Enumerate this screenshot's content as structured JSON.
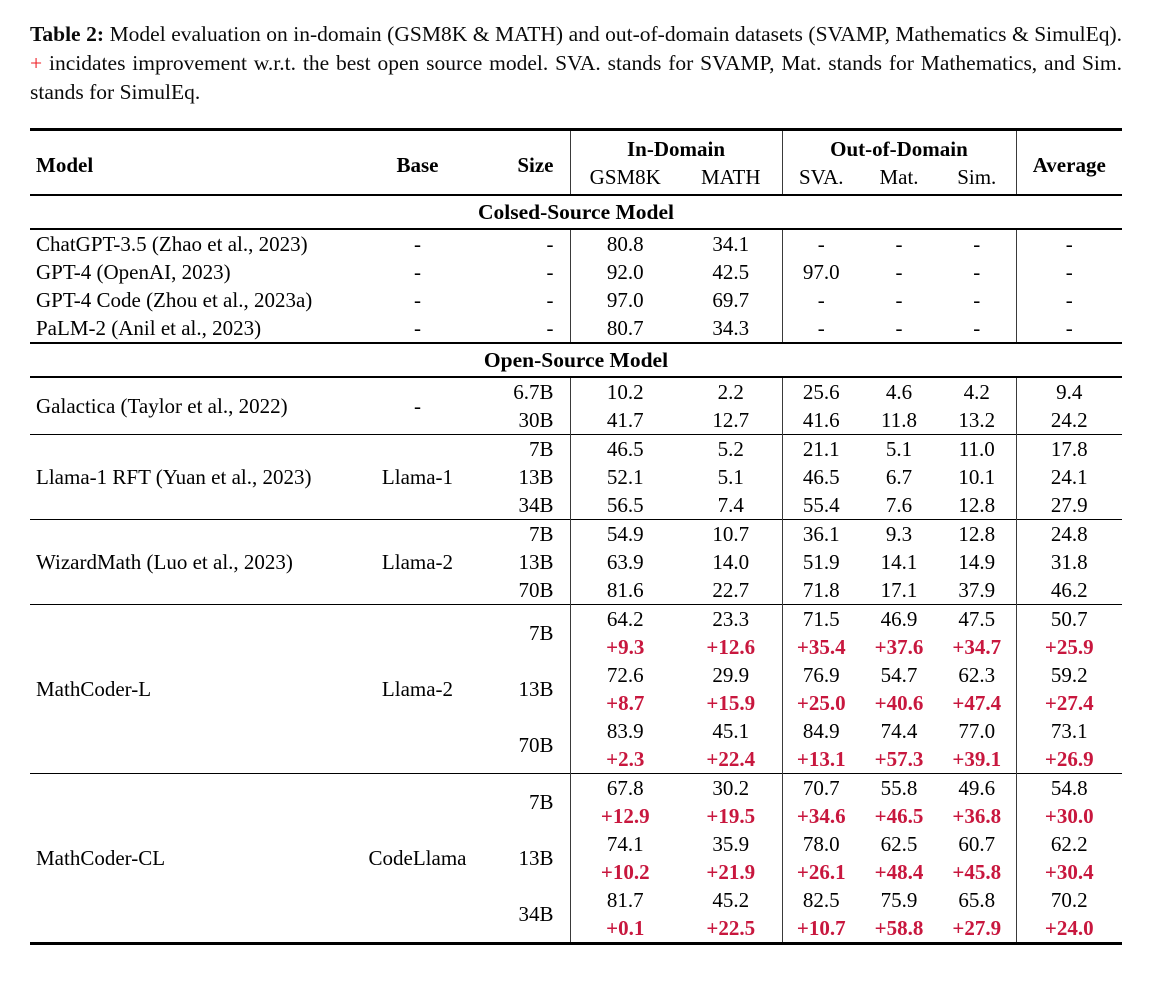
{
  "caption": {
    "label": "Table 2:",
    "text_before_plus": "Model evaluation on in-domain (GSM8K & MATH) and out-of-domain datasets (SVAMP, Mathematics & SimulEq).",
    "plus_sign": "+",
    "text_after_plus": "incidates improvement w.r.t. the best open source model. SVA. stands for SVAMP, Mat. stands for Mathematics, and Sim. stands for SimulEq."
  },
  "colors": {
    "caption_plus": "#ee1b22",
    "improvement_red": "#c8173e",
    "text": "#000000",
    "rule": "#000000"
  },
  "table": {
    "header": {
      "model": "Model",
      "base": "Base",
      "size": "Size",
      "in_domain": "In-Domain",
      "out_of_domain": "Out-of-Domain",
      "average": "Average",
      "in_domain_cols": [
        "GSM8K",
        "MATH"
      ],
      "out_of_domain_cols": [
        "SVA.",
        "Mat.",
        "Sim."
      ]
    },
    "sections": [
      {
        "title": "Colsed-Source Model",
        "divider_between_groups": false,
        "groups": [
          {
            "model": "ChatGPT-3.5 (Zhao et al., 2023)",
            "base": "-",
            "rows": [
              {
                "size": "-",
                "scores": [
                  "80.8",
                  "34.1",
                  "-",
                  "-",
                  "-",
                  "-"
                ]
              }
            ]
          },
          {
            "model": "GPT-4 (OpenAI, 2023)",
            "base": "-",
            "rows": [
              {
                "size": "-",
                "scores": [
                  "92.0",
                  "42.5",
                  "97.0",
                  "-",
                  "-",
                  "-"
                ]
              }
            ]
          },
          {
            "model": "GPT-4 Code (Zhou et al., 2023a)",
            "base": "-",
            "rows": [
              {
                "size": "-",
                "scores": [
                  "97.0",
                  "69.7",
                  "-",
                  "-",
                  "-",
                  "-"
                ]
              }
            ]
          },
          {
            "model": "PaLM-2 (Anil et al., 2023)",
            "base": "-",
            "rows": [
              {
                "size": "-",
                "scores": [
                  "80.7",
                  "34.3",
                  "-",
                  "-",
                  "-",
                  "-"
                ]
              }
            ]
          }
        ]
      },
      {
        "title": "Open-Source Model",
        "divider_between_groups": true,
        "groups": [
          {
            "model": "Galactica (Taylor et al., 2022)",
            "base": "-",
            "rows": [
              {
                "size": "6.7B",
                "scores": [
                  "10.2",
                  "2.2",
                  "25.6",
                  "4.6",
                  "4.2",
                  "9.4"
                ]
              },
              {
                "size": "30B",
                "scores": [
                  "41.7",
                  "12.7",
                  "41.6",
                  "11.8",
                  "13.2",
                  "24.2"
                ]
              }
            ]
          },
          {
            "model": "Llama-1 RFT (Yuan et al., 2023)",
            "base": "Llama-1",
            "rows": [
              {
                "size": "7B",
                "scores": [
                  "46.5",
                  "5.2",
                  "21.1",
                  "5.1",
                  "11.0",
                  "17.8"
                ]
              },
              {
                "size": "13B",
                "scores": [
                  "52.1",
                  "5.1",
                  "46.5",
                  "6.7",
                  "10.1",
                  "24.1"
                ]
              },
              {
                "size": "34B",
                "scores": [
                  "56.5",
                  "7.4",
                  "55.4",
                  "7.6",
                  "12.8",
                  "27.9"
                ]
              }
            ]
          },
          {
            "model": "WizardMath (Luo et al., 2023)",
            "base": "Llama-2",
            "rows": [
              {
                "size": "7B",
                "scores": [
                  "54.9",
                  "10.7",
                  "36.1",
                  "9.3",
                  "12.8",
                  "24.8"
                ]
              },
              {
                "size": "13B",
                "scores": [
                  "63.9",
                  "14.0",
                  "51.9",
                  "14.1",
                  "14.9",
                  "31.8"
                ]
              },
              {
                "size": "70B",
                "scores": [
                  "81.6",
                  "22.7",
                  "71.8",
                  "17.1",
                  "37.9",
                  "46.2"
                ]
              }
            ]
          },
          {
            "model": "MathCoder-L",
            "base": "Llama-2",
            "rows": [
              {
                "size": "7B",
                "scores": [
                  "64.2",
                  "23.3",
                  "71.5",
                  "46.9",
                  "47.5",
                  "50.7"
                ],
                "improvement": [
                  "+9.3",
                  "+12.6",
                  "+35.4",
                  "+37.6",
                  "+34.7",
                  "+25.9"
                ]
              },
              {
                "size": "13B",
                "scores": [
                  "72.6",
                  "29.9",
                  "76.9",
                  "54.7",
                  "62.3",
                  "59.2"
                ],
                "improvement": [
                  "+8.7",
                  "+15.9",
                  "+25.0",
                  "+40.6",
                  "+47.4",
                  "+27.4"
                ]
              },
              {
                "size": "70B",
                "scores": [
                  "83.9",
                  "45.1",
                  "84.9",
                  "74.4",
                  "77.0",
                  "73.1"
                ],
                "improvement": [
                  "+2.3",
                  "+22.4",
                  "+13.1",
                  "+57.3",
                  "+39.1",
                  "+26.9"
                ]
              }
            ]
          },
          {
            "model": "MathCoder-CL",
            "base": "CodeLlama",
            "rows": [
              {
                "size": "7B",
                "scores": [
                  "67.8",
                  "30.2",
                  "70.7",
                  "55.8",
                  "49.6",
                  "54.8"
                ],
                "improvement": [
                  "+12.9",
                  "+19.5",
                  "+34.6",
                  "+46.5",
                  "+36.8",
                  "+30.0"
                ]
              },
              {
                "size": "13B",
                "scores": [
                  "74.1",
                  "35.9",
                  "78.0",
                  "62.5",
                  "60.7",
                  "62.2"
                ],
                "improvement": [
                  "+10.2",
                  "+21.9",
                  "+26.1",
                  "+48.4",
                  "+45.8",
                  "+30.4"
                ]
              },
              {
                "size": "34B",
                "scores": [
                  "81.7",
                  "45.2",
                  "82.5",
                  "75.9",
                  "65.8",
                  "70.2"
                ],
                "improvement": [
                  "+0.1",
                  "+22.5",
                  "+10.7",
                  "+58.8",
                  "+27.9",
                  "+24.0"
                ]
              }
            ]
          }
        ]
      }
    ]
  }
}
